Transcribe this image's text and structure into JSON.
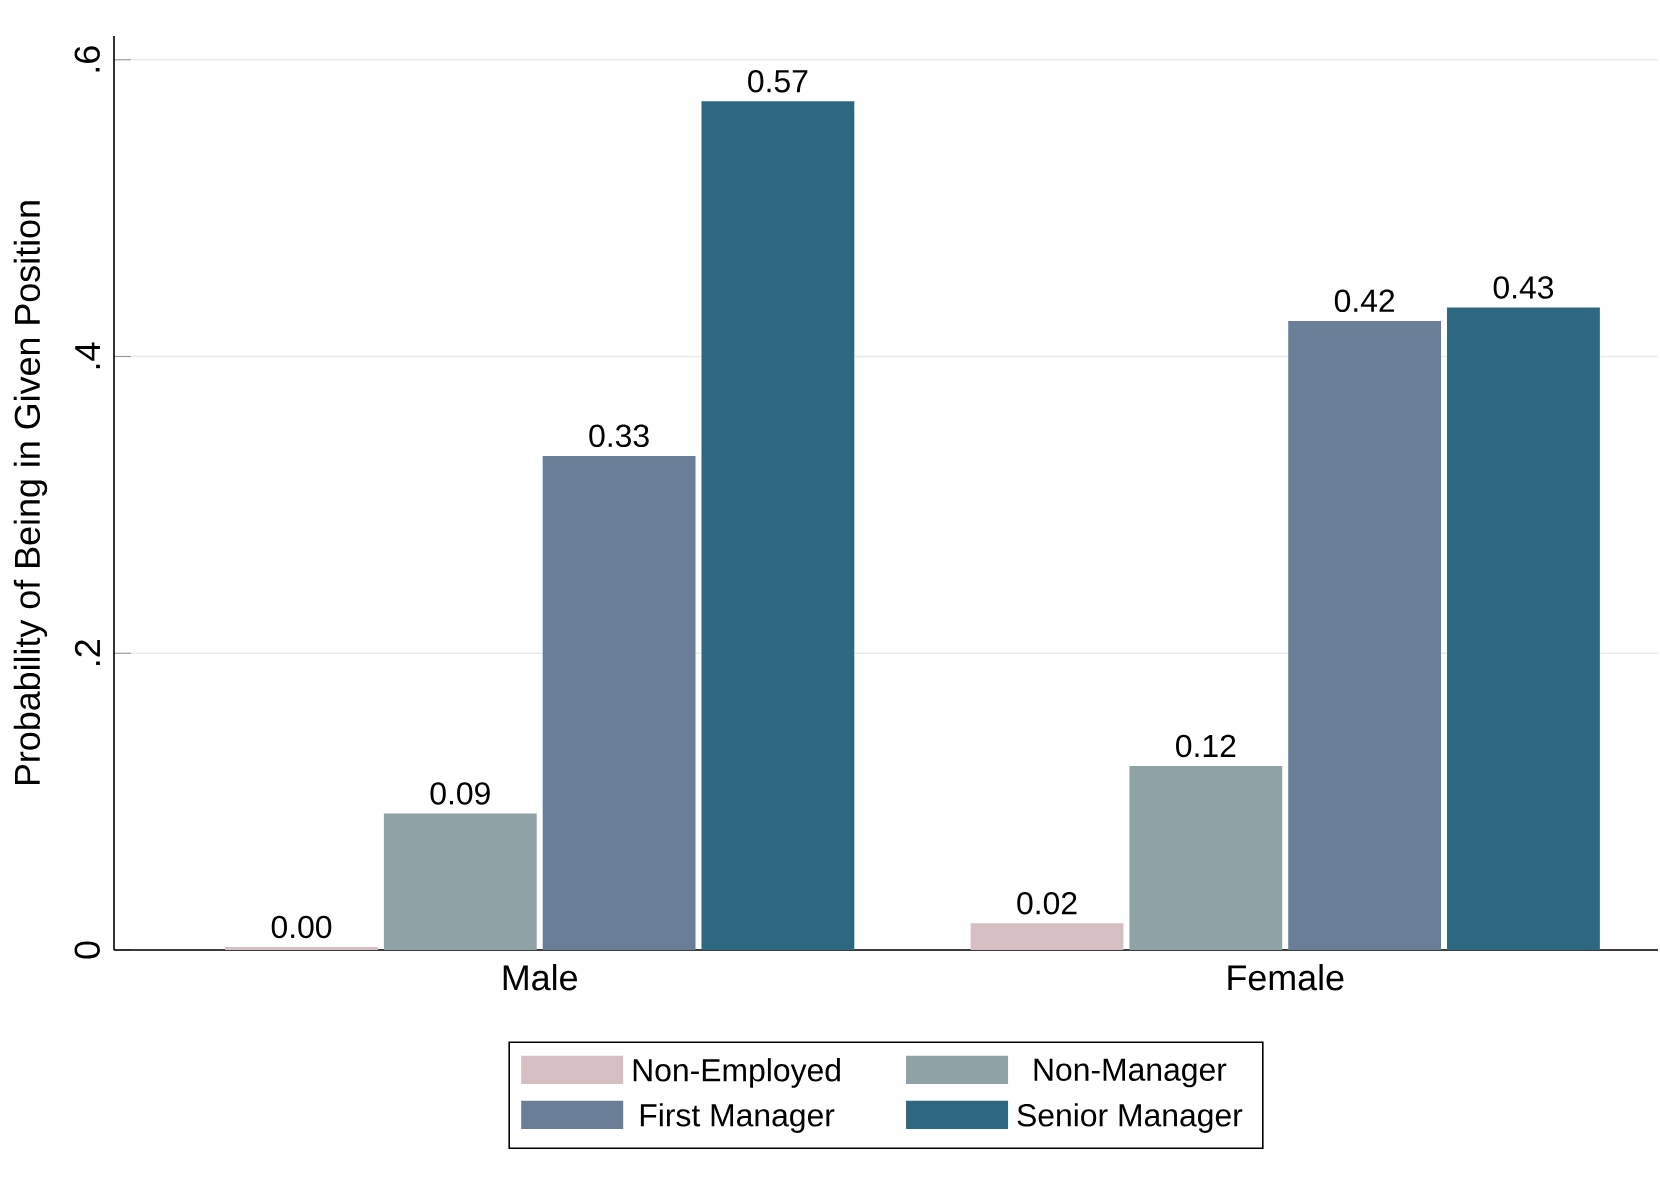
{
  "chart_data": {
    "type": "bar",
    "ylabel": "Probability of Being in Given Position",
    "categories": [
      "Male",
      "Female"
    ],
    "series": [
      {
        "name": "Non-Employed",
        "color": "#d5bfc3",
        "values": [
          0.002,
          0.018
        ],
        "value_labels": [
          "0.00",
          "0.02"
        ]
      },
      {
        "name": "Non-Manager",
        "color": "#8fa2a6",
        "values": [
          0.092,
          0.124
        ],
        "value_labels": [
          "0.09",
          "0.12"
        ]
      },
      {
        "name": "First Manager",
        "color": "#6a7f97",
        "values": [
          0.333,
          0.424
        ],
        "value_labels": [
          "0.33",
          "0.42"
        ]
      },
      {
        "name": "Senior Manager",
        "color": "#2e6880",
        "values": [
          0.572,
          0.433
        ],
        "value_labels": [
          "0.57",
          "0.43"
        ]
      }
    ],
    "ylim": [
      0,
      0.616
    ],
    "yticks": [
      0,
      {
        "value": 0.2,
        "label": ".2"
      },
      {
        "value": 0.4,
        "label": ".4"
      },
      {
        "value": 0.6,
        "label": ".6"
      }
    ],
    "grid": "y",
    "legend": "bottom"
  }
}
